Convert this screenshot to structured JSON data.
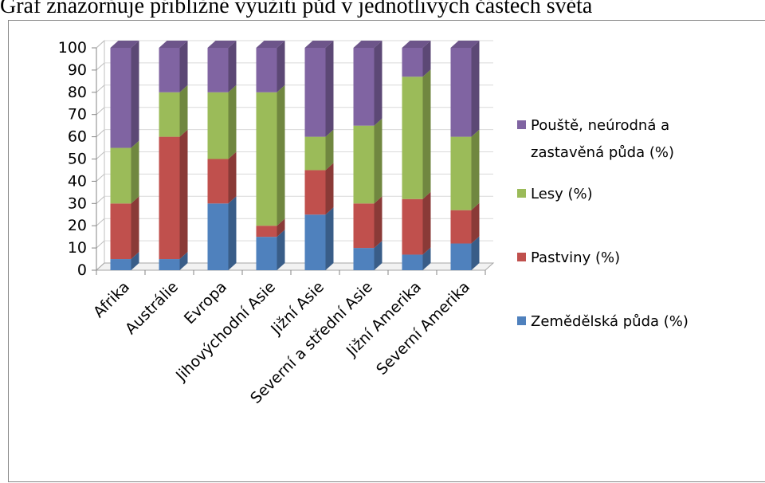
{
  "caption": "Graf znázorňuje přibližné využití půd v jednotlivých částech světa",
  "chart_data": {
    "type": "bar",
    "stacked": true,
    "three_d": true,
    "categories": [
      "Afrika",
      "Austrálie",
      "Evropa",
      "Jihovýchodní Asie",
      "Jižní Asie",
      "Severní a střední Asie",
      "Jižní Amerika",
      "Severní Amerika"
    ],
    "series": [
      {
        "name": "Zemědělská půda (%)",
        "color": "#4F81BD",
        "values": [
          5,
          5,
          30,
          15,
          25,
          10,
          7,
          12
        ]
      },
      {
        "name": "Pastviny (%)",
        "color": "#C0504D",
        "values": [
          25,
          55,
          20,
          5,
          20,
          20,
          25,
          15
        ]
      },
      {
        "name": "Lesy (%)",
        "color": "#9BBB59",
        "values": [
          25,
          20,
          30,
          60,
          15,
          35,
          55,
          33
        ]
      },
      {
        "name": "Pouště, neúrodná a zastavěná půda (%)",
        "color": "#8064A2",
        "values": [
          45,
          20,
          20,
          20,
          40,
          35,
          13,
          40
        ]
      }
    ],
    "ylim": [
      0,
      100
    ],
    "yticks": [
      "0",
      "10",
      "20",
      "30",
      "40",
      "50",
      "60",
      "70",
      "80",
      "90",
      "100"
    ],
    "legend_position": "right",
    "legend_order": [
      3,
      2,
      1,
      0
    ],
    "legend_labels": [
      [
        "Pouště, neúrodná a",
        "zastavěná půda (%)"
      ],
      [
        "Lesy (%)"
      ],
      [
        "Pastviny (%)"
      ],
      [
        "Zemědělská půda (%)"
      ]
    ]
  }
}
